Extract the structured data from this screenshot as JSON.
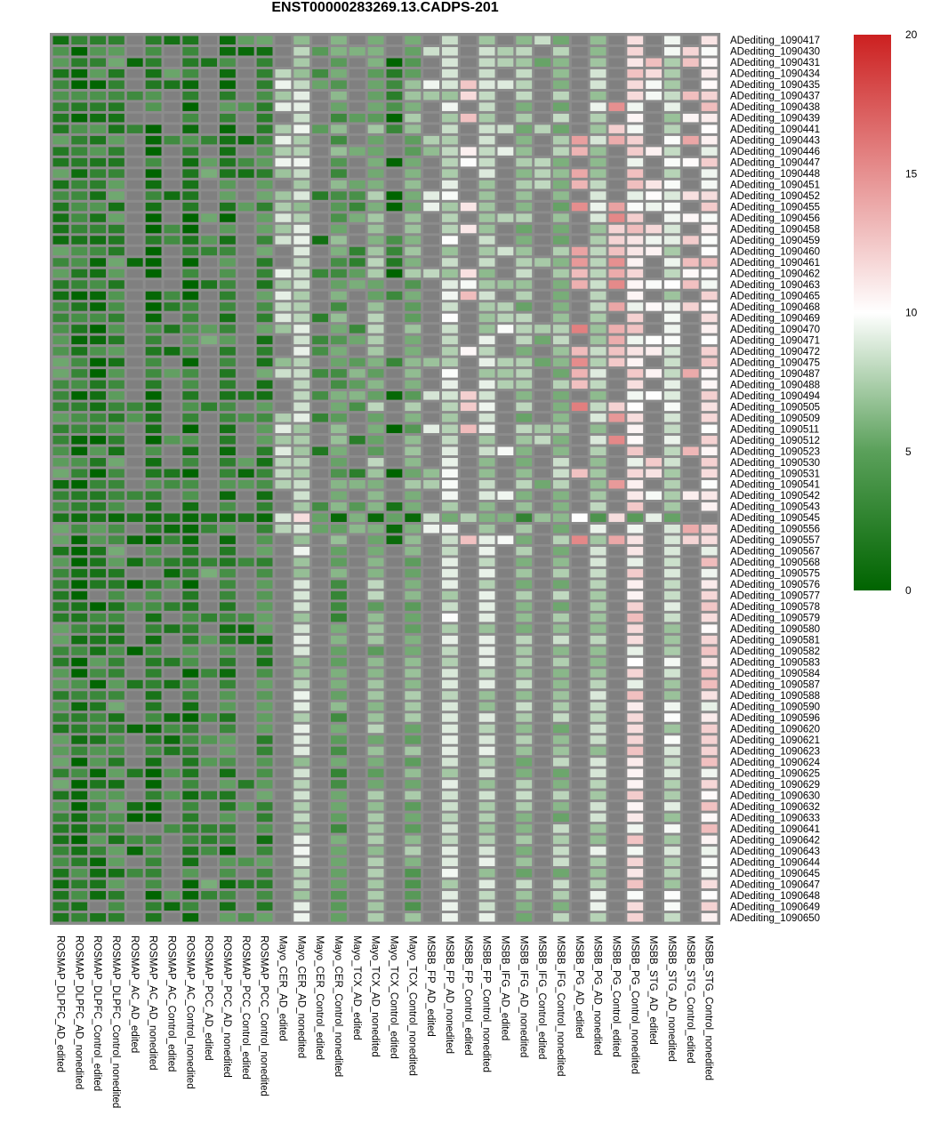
{
  "chart_data": {
    "type": "heatmap",
    "title": "ENST00000283269.13.CADPS-201",
    "color_scale": {
      "min": 0,
      "mid": 10,
      "max": 20,
      "low_color": "#006400",
      "mid_color": "#ffffff",
      "high_color": "#cc2020",
      "na_color": "#808080"
    },
    "legend_ticks": [
      "0",
      "5",
      "10",
      "15",
      "20"
    ],
    "columns": [
      "ROSMAP_DLPFC_AD_edited",
      "ROSMAP_DLPFC_AD_nonedited",
      "ROSMAP_DLPFC_Control_edited",
      "ROSMAP_DLPFC_Control_nonedited",
      "ROSMAP_AC_AD_edited",
      "ROSMAP_AC_AD_nonedited",
      "ROSMAP_AC_Control_edited",
      "ROSMAP_AC_Control_nonedited",
      "ROSMAP_PCC_AD_edited",
      "ROSMAP_PCC_AD_nonedited",
      "ROSMAP_PCC_Control_edited",
      "ROSMAP_PCC_Control_nonedited",
      "Mayo_CER_AD_edited",
      "Mayo_CER_AD_nonedited",
      "Mayo_CER_Control_edited",
      "Mayo_CER_Control_nonedited",
      "Mayo_TCX_AD_edited",
      "Mayo_TCX_AD_nonedited",
      "Mayo_TCX_Control_edited",
      "Mayo_TCX_Control_nonedited",
      "MSBB_FP_AD_edited",
      "MSBB_FP_AD_nonedited",
      "MSBB_FP_Control_edited",
      "MSBB_FP_Control_nonedited",
      "MSBB_IFG_AD_edited",
      "MSBB_IFG_AD_nonedited",
      "MSBB_IFG_Control_edited",
      "MSBB_IFG_Control_nonedited",
      "MSBB_PG_AD_edited",
      "MSBB_PG_AD_nonedited",
      "MSBB_PG_Control_edited",
      "MSBB_PG_Control_nonedited",
      "MSBB_STG_AD_edited",
      "MSBB_STG_AD_nonedited",
      "MSBB_STG_Control_edited",
      "MSBB_STG_Control_nonedited"
    ],
    "rows": [
      "ADediting_1090417",
      "ADediting_1090430",
      "ADediting_1090431",
      "ADediting_1090434",
      "ADediting_1090435",
      "ADediting_1090437",
      "ADediting_1090438",
      "ADediting_1090439",
      "ADediting_1090441",
      "ADediting_1090443",
      "ADediting_1090446",
      "ADediting_1090447",
      "ADediting_1090448",
      "ADediting_1090451",
      "ADediting_1090452",
      "ADediting_1090455",
      "ADediting_1090456",
      "ADediting_1090458",
      "ADediting_1090459",
      "ADediting_1090460",
      "ADediting_1090461",
      "ADediting_1090462",
      "ADediting_1090463",
      "ADediting_1090465",
      "ADediting_1090468",
      "ADediting_1090469",
      "ADediting_1090470",
      "ADediting_1090471",
      "ADediting_1090472",
      "ADediting_1090475",
      "ADediting_1090487",
      "ADediting_1090488",
      "ADediting_1090494",
      "ADediting_1090505",
      "ADediting_1090509",
      "ADediting_1090511",
      "ADediting_1090512",
      "ADediting_1090523",
      "ADediting_1090530",
      "ADediting_1090531",
      "ADediting_1090541",
      "ADediting_1090542",
      "ADediting_1090543",
      "ADediting_1090545",
      "ADediting_1090556",
      "ADediting_1090557",
      "ADediting_1090567",
      "ADediting_1090568",
      "ADediting_1090575",
      "ADediting_1090576",
      "ADediting_1090577",
      "ADediting_1090578",
      "ADediting_1090579",
      "ADediting_1090580",
      "ADediting_1090581",
      "ADediting_1090582",
      "ADediting_1090583",
      "ADediting_1090584",
      "ADediting_1090587",
      "ADediting_1090588",
      "ADediting_1090590",
      "ADediting_1090596",
      "ADediting_1090620",
      "ADediting_1090621",
      "ADediting_1090623",
      "ADediting_1090624",
      "ADediting_1090625",
      "ADediting_1090629",
      "ADediting_1090630",
      "ADediting_1090632",
      "ADediting_1090633",
      "ADediting_1090641",
      "ADediting_1090642",
      "ADediting_1090643",
      "ADediting_1090644",
      "ADediting_1090645",
      "ADediting_1090647",
      "ADediting_1090648",
      "ADediting_1090649",
      "ADediting_1090650"
    ],
    "column_profiles": [
      {
        "base": 2.5,
        "na_rate": 0.0
      },
      {
        "base": 1.2,
        "na_rate": 0.0
      },
      {
        "base": 1.8,
        "na_rate": 0.05
      },
      {
        "base": 2.6,
        "na_rate": 0.0
      },
      {
        "base": 1.5,
        "na_rate": 0.75
      },
      {
        "base": 1.3,
        "na_rate": 0.1
      },
      {
        "base": 2.2,
        "na_rate": 0.6
      },
      {
        "base": 1.5,
        "na_rate": 0.0
      },
      {
        "base": 3.0,
        "na_rate": 0.65
      },
      {
        "base": 2.0,
        "na_rate": 0.0
      },
      {
        "base": 2.0,
        "na_rate": 0.7
      },
      {
        "base": 2.6,
        "na_rate": 0.0
      },
      {
        "base": 7.5,
        "na_rate": 0.4
      },
      {
        "base": 7.5,
        "na_rate": 0.0
      },
      {
        "base": 2.5,
        "na_rate": 0.6
      },
      {
        "base": 4.0,
        "na_rate": 0.0
      },
      {
        "base": 3.5,
        "na_rate": 0.45
      },
      {
        "base": 5.5,
        "na_rate": 0.0
      },
      {
        "base": 1.0,
        "na_rate": 0.55
      },
      {
        "base": 5.0,
        "na_rate": 0.0
      },
      {
        "base": 7.5,
        "na_rate": 0.6
      },
      {
        "base": 8.0,
        "na_rate": 0.0
      },
      {
        "base": 11.5,
        "na_rate": 0.6
      },
      {
        "base": 7.5,
        "na_rate": 0.0
      },
      {
        "base": 8.0,
        "na_rate": 0.65
      },
      {
        "base": 6.0,
        "na_rate": 0.0
      },
      {
        "base": 6.0,
        "na_rate": 0.75
      },
      {
        "base": 6.0,
        "na_rate": 0.0
      },
      {
        "base": 14.0,
        "na_rate": 0.6
      },
      {
        "base": 7.5,
        "na_rate": 0.0
      },
      {
        "base": 13.5,
        "na_rate": 0.55
      },
      {
        "base": 11.0,
        "na_rate": 0.0
      },
      {
        "base": 11.0,
        "na_rate": 0.6
      },
      {
        "base": 8.0,
        "na_rate": 0.0
      },
      {
        "base": 12.0,
        "na_rate": 0.65
      },
      {
        "base": 11.0,
        "na_rate": 0.0
      }
    ],
    "special_rows": {
      "ADediting_1090545": [
        1.0,
        0.5,
        1.0,
        0.3,
        1.0,
        0.5,
        1.0,
        0.3,
        1.0,
        0.5,
        1.0,
        0.3,
        8.5,
        11.5,
        4.0,
        0.3,
        5.0,
        0.3,
        4.0,
        0.3,
        8.0,
        4.5,
        7.0,
        5.0,
        5.0,
        2.0,
        6.0,
        5.5,
        10.0,
        3.0,
        11.5,
        3.5,
        9.0,
        4.0,
        null,
        null
      ]
    }
  }
}
